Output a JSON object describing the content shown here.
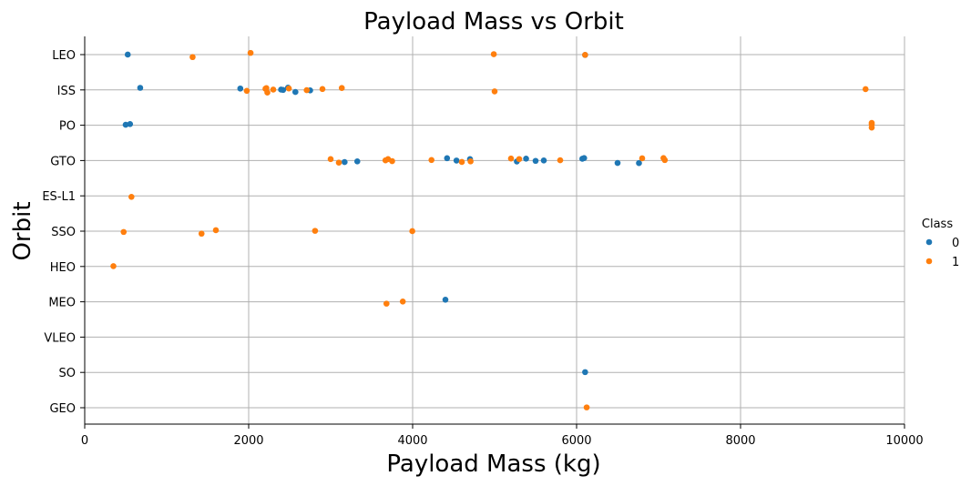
{
  "chart_data": {
    "type": "scatter",
    "title": "Payload Mass vs Orbit",
    "xlabel": "Payload Mass (kg)",
    "ylabel": "Orbit",
    "xlim": [
      0,
      10000
    ],
    "xticks": [
      0,
      2000,
      4000,
      6000,
      8000,
      10000
    ],
    "categories": [
      "LEO",
      "ISS",
      "PO",
      "GTO",
      "ES-L1",
      "SSO",
      "HEO",
      "MEO",
      "VLEO",
      "SO",
      "GEO"
    ],
    "grid": true,
    "legend": {
      "title": "Class",
      "placement": "right"
    },
    "series": [
      {
        "name": "0",
        "color": "#1f77b4",
        "points": [
          {
            "x": 525,
            "y": "LEO"
          },
          {
            "x": 6104,
            "y": "LEO"
          },
          {
            "x": 677,
            "y": "ISS"
          },
          {
            "x": 1898,
            "y": "ISS"
          },
          {
            "x": 2395,
            "y": "ISS"
          },
          {
            "x": 2420,
            "y": "ISS"
          },
          {
            "x": 2480,
            "y": "ISS"
          },
          {
            "x": 2570,
            "y": "ISS"
          },
          {
            "x": 2750,
            "y": "ISS"
          },
          {
            "x": 500,
            "y": "PO"
          },
          {
            "x": 553,
            "y": "PO"
          },
          {
            "x": 3170,
            "y": "GTO"
          },
          {
            "x": 3325,
            "y": "GTO"
          },
          {
            "x": 4420,
            "y": "GTO"
          },
          {
            "x": 4535,
            "y": "GTO"
          },
          {
            "x": 4700,
            "y": "GTO"
          },
          {
            "x": 5271,
            "y": "GTO"
          },
          {
            "x": 5384,
            "y": "GTO"
          },
          {
            "x": 5500,
            "y": "GTO"
          },
          {
            "x": 5600,
            "y": "GTO"
          },
          {
            "x": 6070,
            "y": "GTO"
          },
          {
            "x": 6092,
            "y": "GTO"
          },
          {
            "x": 6500,
            "y": "GTO"
          },
          {
            "x": 6761,
            "y": "GTO"
          },
          {
            "x": 4400,
            "y": "MEO"
          },
          {
            "x": 6104,
            "y": "SO"
          }
        ]
      },
      {
        "name": "1",
        "color": "#ff7f0e",
        "points": [
          {
            "x": 1316,
            "y": "LEO"
          },
          {
            "x": 2023,
            "y": "LEO"
          },
          {
            "x": 4990,
            "y": "LEO"
          },
          {
            "x": 6104,
            "y": "LEO"
          },
          {
            "x": 1977,
            "y": "ISS"
          },
          {
            "x": 2205,
            "y": "ISS"
          },
          {
            "x": 2216,
            "y": "ISS"
          },
          {
            "x": 2228,
            "y": "ISS"
          },
          {
            "x": 2300,
            "y": "ISS"
          },
          {
            "x": 2490,
            "y": "ISS"
          },
          {
            "x": 2708,
            "y": "ISS"
          },
          {
            "x": 2900,
            "y": "ISS"
          },
          {
            "x": 3136,
            "y": "ISS"
          },
          {
            "x": 5000,
            "y": "ISS"
          },
          {
            "x": 9525,
            "y": "ISS"
          },
          {
            "x": 9600,
            "y": "PO"
          },
          {
            "x": 9600,
            "y": "PO"
          },
          {
            "x": 9600,
            "y": "PO"
          },
          {
            "x": 3000,
            "y": "GTO"
          },
          {
            "x": 3100,
            "y": "GTO"
          },
          {
            "x": 3669,
            "y": "GTO"
          },
          {
            "x": 3700,
            "y": "GTO"
          },
          {
            "x": 3750,
            "y": "GTO"
          },
          {
            "x": 4230,
            "y": "GTO"
          },
          {
            "x": 4600,
            "y": "GTO"
          },
          {
            "x": 4707,
            "y": "GTO"
          },
          {
            "x": 5200,
            "y": "GTO"
          },
          {
            "x": 5300,
            "y": "GTO"
          },
          {
            "x": 5800,
            "y": "GTO"
          },
          {
            "x": 6800,
            "y": "GTO"
          },
          {
            "x": 7060,
            "y": "GTO"
          },
          {
            "x": 7076,
            "y": "GTO"
          },
          {
            "x": 570,
            "y": "ES-L1"
          },
          {
            "x": 475,
            "y": "SSO"
          },
          {
            "x": 1425,
            "y": "SSO"
          },
          {
            "x": 1600,
            "y": "SSO"
          },
          {
            "x": 2810,
            "y": "SSO"
          },
          {
            "x": 3996,
            "y": "SSO"
          },
          {
            "x": 350,
            "y": "HEO"
          },
          {
            "x": 3681,
            "y": "MEO"
          },
          {
            "x": 3880,
            "y": "MEO"
          },
          {
            "x": 6123,
            "y": "GEO"
          }
        ]
      }
    ]
  }
}
